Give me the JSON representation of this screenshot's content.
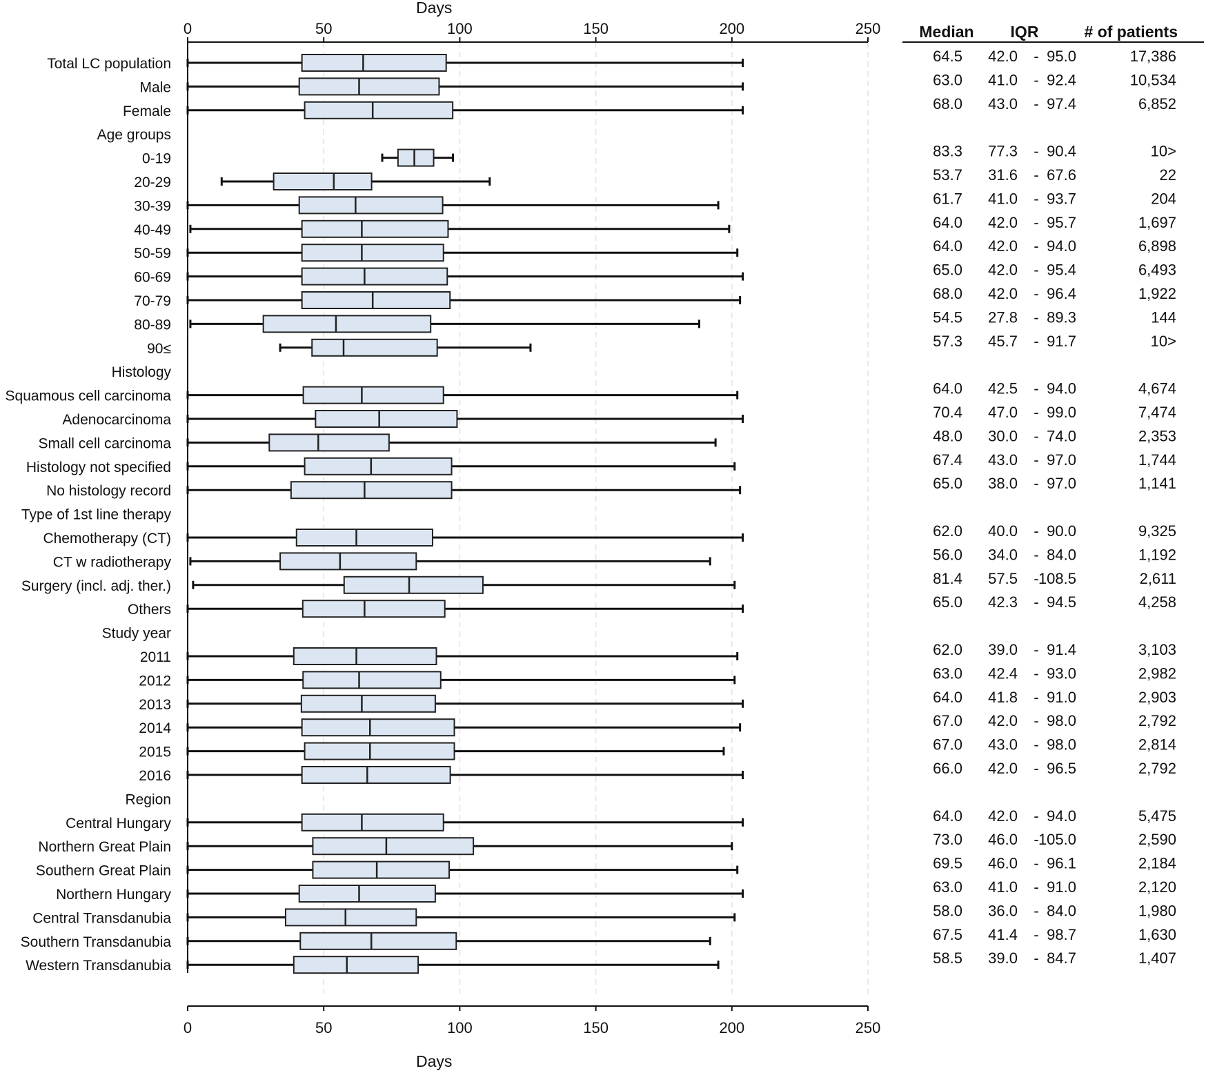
{
  "chart_data": {
    "type": "boxplot",
    "xlabel": "Days",
    "xlim": [
      0,
      250
    ],
    "x_ticks": [
      0,
      50,
      100,
      150,
      200,
      250
    ],
    "grid": "vertical dashed",
    "box_color": "#dce6f2",
    "table_headers": {
      "median": "Median",
      "iqr": "IQR",
      "patients": "# of patients"
    },
    "rows": [
      {
        "label": "Total LC population",
        "min": 0,
        "q1": 42.0,
        "median": 64.5,
        "q3": 95.0,
        "max": 204,
        "median_text": "64.5",
        "q1_text": "42.0",
        "q3_text": "95.0",
        "patients": "17,386"
      },
      {
        "label": "Male",
        "min": 0,
        "q1": 41.0,
        "median": 63.0,
        "q3": 92.4,
        "max": 204,
        "median_text": "63.0",
        "q1_text": "41.0",
        "q3_text": "92.4",
        "patients": "10,534"
      },
      {
        "label": "Female",
        "min": 0,
        "q1": 43.0,
        "median": 68.0,
        "q3": 97.4,
        "max": 204,
        "median_text": "68.0",
        "q1_text": "43.0",
        "q3_text": "97.4",
        "patients": "6,852"
      },
      {
        "label": "Age groups",
        "header": true
      },
      {
        "label": "0-19",
        "min": 71.5,
        "q1": 77.3,
        "median": 83.3,
        "q3": 90.4,
        "max": 97.5,
        "median_text": "83.3",
        "q1_text": "77.3",
        "q3_text": "90.4",
        "patients": "10>"
      },
      {
        "label": "20-29",
        "min": 12.5,
        "q1": 31.6,
        "median": 53.7,
        "q3": 67.6,
        "max": 111,
        "median_text": "53.7",
        "q1_text": "31.6",
        "q3_text": "67.6",
        "patients": "22"
      },
      {
        "label": "30-39",
        "min": 0,
        "q1": 41.0,
        "median": 61.7,
        "q3": 93.7,
        "max": 195,
        "median_text": "61.7",
        "q1_text": "41.0",
        "q3_text": "93.7",
        "patients": "204"
      },
      {
        "label": "40-49",
        "min": 1,
        "q1": 42.0,
        "median": 64.0,
        "q3": 95.7,
        "max": 199,
        "median_text": "64.0",
        "q1_text": "42.0",
        "q3_text": "95.7",
        "patients": "1,697"
      },
      {
        "label": "50-59",
        "min": 0,
        "q1": 42.0,
        "median": 64.0,
        "q3": 94.0,
        "max": 202,
        "median_text": "64.0",
        "q1_text": "42.0",
        "q3_text": "94.0",
        "patients": "6,898"
      },
      {
        "label": "60-69",
        "min": 0,
        "q1": 42.0,
        "median": 65.0,
        "q3": 95.4,
        "max": 204,
        "median_text": "65.0",
        "q1_text": "42.0",
        "q3_text": "95.4",
        "patients": "6,493"
      },
      {
        "label": "70-79",
        "min": 0,
        "q1": 42.0,
        "median": 68.0,
        "q3": 96.4,
        "max": 203,
        "median_text": "68.0",
        "q1_text": "42.0",
        "q3_text": "96.4",
        "patients": "1,922"
      },
      {
        "label": "80-89",
        "min": 1,
        "q1": 27.8,
        "median": 54.5,
        "q3": 89.3,
        "max": 188,
        "median_text": "54.5",
        "q1_text": "27.8",
        "q3_text": "89.3",
        "patients": "144"
      },
      {
        "label": "90≤",
        "min": 34,
        "q1": 45.7,
        "median": 57.3,
        "q3": 91.7,
        "max": 126,
        "median_text": "57.3",
        "q1_text": "45.7",
        "q3_text": "91.7",
        "patients": "10>"
      },
      {
        "label": "Histology",
        "header": true
      },
      {
        "label": "Squamous cell carcinoma",
        "min": 0,
        "q1": 42.5,
        "median": 64.0,
        "q3": 94.0,
        "max": 202,
        "median_text": "64.0",
        "q1_text": "42.5",
        "q3_text": "94.0",
        "patients": "4,674"
      },
      {
        "label": "Adenocarcinoma",
        "min": 0,
        "q1": 47.0,
        "median": 70.4,
        "q3": 99.0,
        "max": 204,
        "median_text": "70.4",
        "q1_text": "47.0",
        "q3_text": "99.0",
        "patients": "7,474"
      },
      {
        "label": "Small cell carcinoma",
        "min": 0,
        "q1": 30.0,
        "median": 48.0,
        "q3": 74.0,
        "max": 194,
        "median_text": "48.0",
        "q1_text": "30.0",
        "q3_text": "74.0",
        "patients": "2,353"
      },
      {
        "label": "Histology not specified",
        "min": 0,
        "q1": 43.0,
        "median": 67.4,
        "q3": 97.0,
        "max": 201,
        "median_text": "67.4",
        "q1_text": "43.0",
        "q3_text": "97.0",
        "patients": "1,744"
      },
      {
        "label": "No histology record",
        "min": 0,
        "q1": 38.0,
        "median": 65.0,
        "q3": 97.0,
        "max": 203,
        "median_text": "65.0",
        "q1_text": "38.0",
        "q3_text": "97.0",
        "patients": "1,141"
      },
      {
        "label": "Type of 1st line therapy",
        "header": true
      },
      {
        "label": "Chemotherapy (CT)",
        "min": 0,
        "q1": 40.0,
        "median": 62.0,
        "q3": 90.0,
        "max": 204,
        "median_text": "62.0",
        "q1_text": "40.0",
        "q3_text": "90.0",
        "patients": "9,325"
      },
      {
        "label": "CT w radiotherapy",
        "min": 1,
        "q1": 34.0,
        "median": 56.0,
        "q3": 84.0,
        "max": 192,
        "median_text": "56.0",
        "q1_text": "34.0",
        "q3_text": "84.0",
        "patients": "1,192"
      },
      {
        "label": "Surgery (incl. adj. ther.)",
        "min": 2,
        "q1": 57.5,
        "median": 81.4,
        "q3": 108.5,
        "max": 201,
        "median_text": "81.4",
        "q1_text": "57.5",
        "q3_text": "108.5",
        "patients": "2,611"
      },
      {
        "label": "Others",
        "min": 0,
        "q1": 42.3,
        "median": 65.0,
        "q3": 94.5,
        "max": 204,
        "median_text": "65.0",
        "q1_text": "42.3",
        "q3_text": "94.5",
        "patients": "4,258"
      },
      {
        "label": "Study year",
        "header": true
      },
      {
        "label": "2011",
        "min": 0,
        "q1": 39.0,
        "median": 62.0,
        "q3": 91.4,
        "max": 202,
        "median_text": "62.0",
        "q1_text": "39.0",
        "q3_text": "91.4",
        "patients": "3,103"
      },
      {
        "label": "2012",
        "min": 0,
        "q1": 42.4,
        "median": 63.0,
        "q3": 93.0,
        "max": 201,
        "median_text": "63.0",
        "q1_text": "42.4",
        "q3_text": "93.0",
        "patients": "2,982"
      },
      {
        "label": "2013",
        "min": 0,
        "q1": 41.8,
        "median": 64.0,
        "q3": 91.0,
        "max": 204,
        "median_text": "64.0",
        "q1_text": "41.8",
        "q3_text": "91.0",
        "patients": "2,903"
      },
      {
        "label": "2014",
        "min": 0,
        "q1": 42.0,
        "median": 67.0,
        "q3": 98.0,
        "max": 203,
        "median_text": "67.0",
        "q1_text": "42.0",
        "q3_text": "98.0",
        "patients": "2,792"
      },
      {
        "label": "2015",
        "min": 0,
        "q1": 43.0,
        "median": 67.0,
        "q3": 98.0,
        "max": 197,
        "median_text": "67.0",
        "q1_text": "43.0",
        "q3_text": "98.0",
        "patients": "2,814"
      },
      {
        "label": "2016",
        "min": 0,
        "q1": 42.0,
        "median": 66.0,
        "q3": 96.5,
        "max": 204,
        "median_text": "66.0",
        "q1_text": "42.0",
        "q3_text": "96.5",
        "patients": "2,792"
      },
      {
        "label": "Region",
        "header": true
      },
      {
        "label": "Central Hungary",
        "min": 0,
        "q1": 42.0,
        "median": 64.0,
        "q3": 94.0,
        "max": 204,
        "median_text": "64.0",
        "q1_text": "42.0",
        "q3_text": "94.0",
        "patients": "5,475"
      },
      {
        "label": "Northern Great Plain",
        "min": 0,
        "q1": 46.0,
        "median": 73.0,
        "q3": 105.0,
        "max": 200,
        "median_text": "73.0",
        "q1_text": "46.0",
        "q3_text": "105.0",
        "patients": "2,590"
      },
      {
        "label": "Southern Great Plain",
        "min": 0,
        "q1": 46.0,
        "median": 69.5,
        "q3": 96.1,
        "max": 202,
        "median_text": "69.5",
        "q1_text": "46.0",
        "q3_text": "96.1",
        "patients": "2,184"
      },
      {
        "label": "Northern Hungary",
        "min": 0,
        "q1": 41.0,
        "median": 63.0,
        "q3": 91.0,
        "max": 204,
        "median_text": "63.0",
        "q1_text": "41.0",
        "q3_text": "91.0",
        "patients": "2,120"
      },
      {
        "label": "Central Transdanubia",
        "min": 0,
        "q1": 36.0,
        "median": 58.0,
        "q3": 84.0,
        "max": 201,
        "median_text": "58.0",
        "q1_text": "36.0",
        "q3_text": "84.0",
        "patients": "1,980"
      },
      {
        "label": "Southern Transdanubia",
        "min": 0,
        "q1": 41.4,
        "median": 67.5,
        "q3": 98.7,
        "max": 192,
        "median_text": "67.5",
        "q1_text": "41.4",
        "q3_text": "98.7",
        "patients": "1,630"
      },
      {
        "label": "Western Transdanubia",
        "min": 0,
        "q1": 39.0,
        "median": 58.5,
        "q3": 84.7,
        "max": 195,
        "median_text": "58.5",
        "q1_text": "39.0",
        "q3_text": "84.7",
        "patients": "1,407"
      }
    ]
  }
}
